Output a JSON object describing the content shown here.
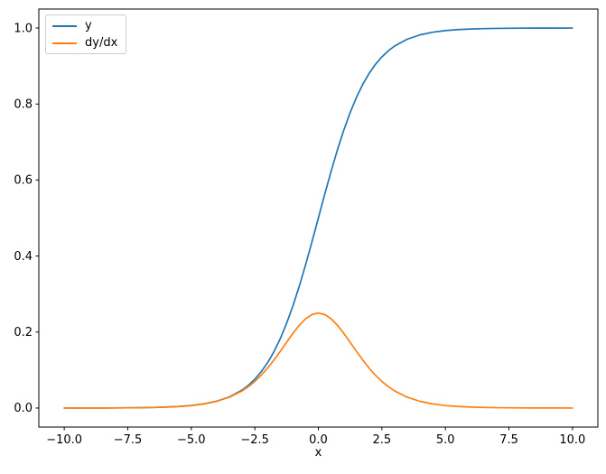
{
  "chart_data": {
    "type": "line",
    "title": "",
    "xlabel": "x",
    "ylabel": "",
    "xlim": [
      -11,
      11
    ],
    "ylim": [
      -0.05,
      1.05
    ],
    "grid": false,
    "legend_position": "upper-left",
    "xticks": [
      -10.0,
      -7.5,
      -5.0,
      -2.5,
      0.0,
      2.5,
      5.0,
      7.5,
      10.0
    ],
    "xtick_labels": [
      "−10.0",
      "−7.5",
      "−5.0",
      "−2.5",
      "0.0",
      "2.5",
      "5.0",
      "7.5",
      "10.0"
    ],
    "yticks": [
      0.0,
      0.2,
      0.4,
      0.6,
      0.8,
      1.0
    ],
    "ytick_labels": [
      "0.0",
      "0.2",
      "0.4",
      "0.6",
      "0.8",
      "1.0"
    ],
    "axis_color": "#000000",
    "x": [
      -10,
      -9.5,
      -9,
      -8.5,
      -8,
      -7.5,
      -7,
      -6.5,
      -6,
      -5.5,
      -5,
      -4.5,
      -4,
      -3.5,
      -3,
      -2.75,
      -2.5,
      -2.25,
      -2,
      -1.75,
      -1.5,
      -1.25,
      -1,
      -0.75,
      -0.5,
      -0.25,
      0,
      0.25,
      0.5,
      0.75,
      1,
      1.25,
      1.5,
      1.75,
      2,
      2.25,
      2.5,
      2.75,
      3,
      3.5,
      4,
      4.5,
      5,
      5.5,
      6,
      6.5,
      7,
      7.5,
      8,
      8.5,
      9,
      9.5,
      10
    ],
    "series": [
      {
        "name": "y",
        "color": "#1f77b4",
        "values": [
          0.0,
          0.0001,
          0.0001,
          0.0002,
          0.0003,
          0.0006,
          0.0009,
          0.0015,
          0.0025,
          0.0041,
          0.0067,
          0.011,
          0.018,
          0.0293,
          0.0474,
          0.0601,
          0.0759,
          0.0953,
          0.1192,
          0.148,
          0.1824,
          0.2227,
          0.2689,
          0.3208,
          0.3775,
          0.4378,
          0.5,
          0.5622,
          0.6225,
          0.6792,
          0.7311,
          0.7773,
          0.8176,
          0.852,
          0.8808,
          0.9047,
          0.9241,
          0.9399,
          0.9526,
          0.9707,
          0.982,
          0.989,
          0.9933,
          0.9959,
          0.9975,
          0.9985,
          0.9991,
          0.9994,
          0.9997,
          0.9998,
          0.9999,
          0.9999,
          1.0
        ]
      },
      {
        "name": "dy/dx",
        "color": "#ff7f0e",
        "values": [
          0.0,
          0.0001,
          0.0001,
          0.0002,
          0.0003,
          0.0006,
          0.0009,
          0.0015,
          0.0025,
          0.0041,
          0.0066,
          0.0109,
          0.0177,
          0.0285,
          0.0452,
          0.0565,
          0.0701,
          0.0862,
          0.105,
          0.1261,
          0.1491,
          0.1731,
          0.1966,
          0.2179,
          0.235,
          0.2461,
          0.25,
          0.2461,
          0.235,
          0.2179,
          0.1966,
          0.1731,
          0.1491,
          0.1261,
          0.105,
          0.0862,
          0.0701,
          0.0565,
          0.0452,
          0.0285,
          0.0177,
          0.0109,
          0.0066,
          0.0041,
          0.0025,
          0.0015,
          0.0009,
          0.0006,
          0.0003,
          0.0002,
          0.0001,
          0.0001,
          0.0
        ]
      }
    ]
  }
}
